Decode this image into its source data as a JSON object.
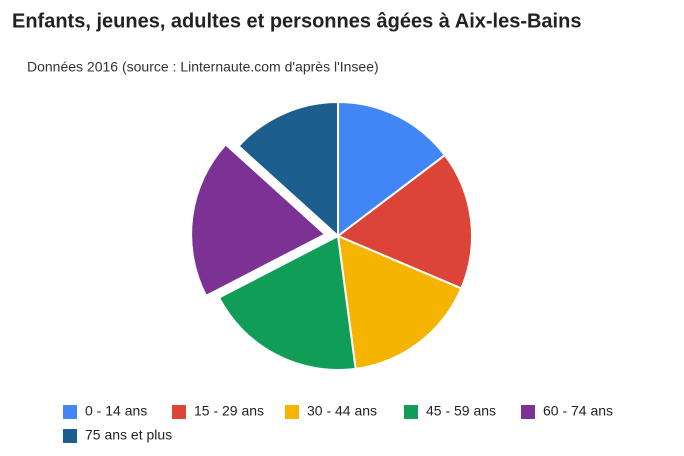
{
  "chart_data": {
    "type": "pie",
    "title": "Enfants, jeunes, adultes et personnes âgées à Aix-les-Bains",
    "subtitle": "Données 2016 (source : Linternaute.com d'après l'Insee)",
    "categories": [
      "0 - 14 ans",
      "15 - 29 ans",
      "30 - 44 ans",
      "45 - 59 ans",
      "60 - 74 ans",
      "75 ans et plus"
    ],
    "values": [
      14.7,
      16.7,
      16.5,
      19.5,
      19.3,
      13.3
    ],
    "colors": [
      "#4285f4",
      "#db4437",
      "#f4b400",
      "#0f9d58",
      "#7b3294",
      "#1c5f8f"
    ],
    "legend": "bottom"
  }
}
